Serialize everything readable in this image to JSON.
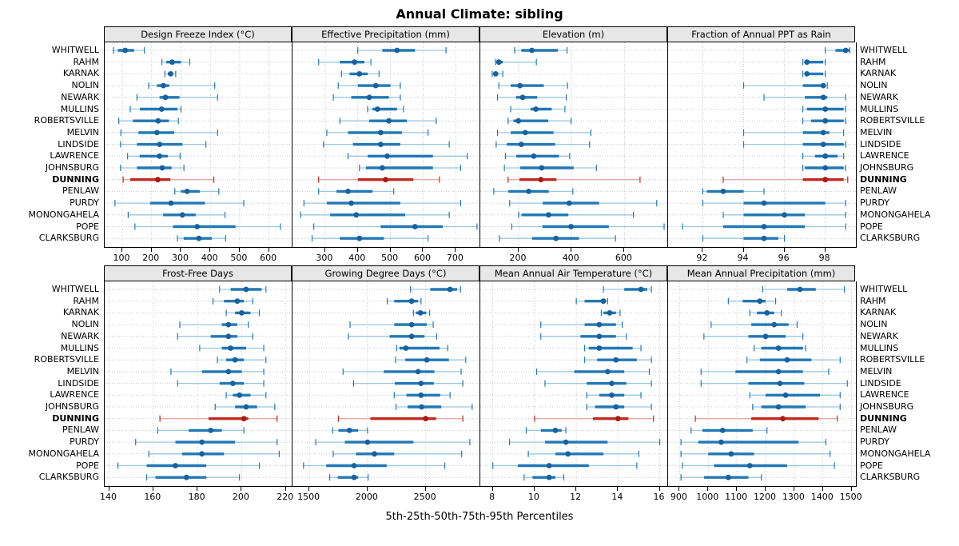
{
  "title": "Annual Climate: sibling",
  "caption": "5th-25th-50th-75th-95th Percentiles",
  "colors": {
    "blue": "#2278b5",
    "blue_light": "#9dc7e0",
    "blue_dot": "#17629e",
    "red": "#c02a21",
    "red_light": "#e8aaa4",
    "red_dot": "#a51d12",
    "grid": "#c9c9c9",
    "strip_bg": "#e7e7e7",
    "border": "#000000"
  },
  "sites": [
    {
      "name": "WHITWELL",
      "highlight": false
    },
    {
      "name": "RAHM",
      "highlight": false
    },
    {
      "name": "KARNAK",
      "highlight": false
    },
    {
      "name": "NOLIN",
      "highlight": false
    },
    {
      "name": "NEWARK",
      "highlight": false
    },
    {
      "name": "MULLINS",
      "highlight": false
    },
    {
      "name": "ROBERTSVILLE",
      "highlight": false
    },
    {
      "name": "MELVIN",
      "highlight": false
    },
    {
      "name": "LINDSIDE",
      "highlight": false
    },
    {
      "name": "LAWRENCE",
      "highlight": false
    },
    {
      "name": "JOHNSBURG",
      "highlight": false
    },
    {
      "name": "DUNNING",
      "highlight": true
    },
    {
      "name": "PENLAW",
      "highlight": false
    },
    {
      "name": "PURDY",
      "highlight": false
    },
    {
      "name": "MONONGAHELA",
      "highlight": false
    },
    {
      "name": "POPE",
      "highlight": false
    },
    {
      "name": "CLARKSBURG",
      "highlight": false
    }
  ],
  "chart_data": {
    "type": "dotplot-percentiles",
    "percentiles": [
      5,
      25,
      50,
      75,
      95
    ],
    "highlight_site": "DUNNING",
    "panel_layout": [
      2,
      4
    ],
    "panels": [
      {
        "title": "Design Freeze Index (°C)",
        "grid_row": 0,
        "xlim": [
          40,
          680
        ],
        "ticks": [
          100,
          200,
          300,
          400,
          500,
          600
        ],
        "values": [
          [
            70,
            85,
            110,
            140,
            175
          ],
          [
            235,
            250,
            270,
            300,
            330
          ],
          [
            245,
            255,
            265,
            272,
            282
          ],
          [
            190,
            218,
            240,
            260,
            415
          ],
          [
            150,
            227,
            247,
            295,
            425
          ],
          [
            127,
            160,
            234,
            288,
            300
          ],
          [
            88,
            136,
            222,
            259,
            291
          ],
          [
            95,
            155,
            218,
            277,
            425
          ],
          [
            94,
            150,
            227,
            305,
            385
          ],
          [
            118,
            159,
            227,
            255,
            297
          ],
          [
            94,
            150,
            236,
            268,
            310
          ],
          [
            103,
            127,
            221,
            264,
            412
          ],
          [
            279,
            300,
            321,
            364,
            429
          ],
          [
            75,
            195,
            266,
            382,
            514
          ],
          [
            120,
            239,
            305,
            350,
            450
          ],
          [
            143,
            273,
            355,
            486,
            639
          ],
          [
            288,
            309,
            361,
            405,
            452
          ]
        ]
      },
      {
        "title": "Effective Precipitation (mm)",
        "grid_row": 0,
        "xlim": [
          200,
          775
        ],
        "ticks": [
          300,
          400,
          500,
          600,
          700
        ],
        "values": [
          [
            400,
            475,
            520,
            575,
            670
          ],
          [
            280,
            345,
            390,
            420,
            440
          ],
          [
            350,
            375,
            405,
            430,
            465
          ],
          [
            340,
            400,
            455,
            500,
            530
          ],
          [
            325,
            380,
            435,
            495,
            530
          ],
          [
            430,
            445,
            460,
            520,
            540
          ],
          [
            345,
            435,
            495,
            550,
            640
          ],
          [
            305,
            370,
            470,
            535,
            615
          ],
          [
            295,
            385,
            470,
            530,
            680
          ],
          [
            370,
            430,
            490,
            630,
            735
          ],
          [
            405,
            425,
            475,
            630,
            715
          ],
          [
            280,
            400,
            485,
            570,
            650
          ],
          [
            280,
            335,
            370,
            445,
            510
          ],
          [
            235,
            305,
            380,
            530,
            715
          ],
          [
            225,
            315,
            395,
            545,
            680
          ],
          [
            265,
            470,
            575,
            660,
            765
          ],
          [
            260,
            345,
            405,
            480,
            615
          ]
        ]
      },
      {
        "title": "Elevation (m)",
        "grid_row": 0,
        "xlim": [
          55,
          765
        ],
        "ticks": [
          200,
          400,
          600
        ],
        "values": [
          [
            185,
            210,
            250,
            348,
            383
          ],
          [
            112,
            116,
            125,
            140,
            267
          ],
          [
            100,
            105,
            113,
            123,
            140
          ],
          [
            125,
            170,
            205,
            295,
            385
          ],
          [
            120,
            190,
            215,
            270,
            380
          ],
          [
            170,
            245,
            265,
            325,
            375
          ],
          [
            160,
            180,
            199,
            312,
            398
          ],
          [
            120,
            170,
            225,
            332,
            473
          ],
          [
            115,
            155,
            210,
            338,
            468
          ],
          [
            150,
            191,
            257,
            352,
            393
          ],
          [
            146,
            206,
            287,
            408,
            494
          ],
          [
            160,
            203,
            284,
            343,
            659
          ],
          [
            106,
            161,
            238,
            314,
            405
          ],
          [
            166,
            291,
            391,
            504,
            722
          ],
          [
            200,
            211,
            313,
            388,
            634
          ],
          [
            174,
            290,
            398,
            541,
            750
          ],
          [
            127,
            251,
            341,
            428,
            566
          ]
        ]
      },
      {
        "title": "Fraction of Annual PPT as Rain",
        "grid_row": 0,
        "xlim": [
          90.3,
          99.5
        ],
        "ticks": [
          92,
          94,
          96,
          98
        ],
        "values": [
          [
            98,
            98.5,
            99,
            99.2,
            99.2
          ],
          [
            96.9,
            97,
            97.1,
            97.9,
            98
          ],
          [
            96.9,
            97,
            97.1,
            97.9,
            98
          ],
          [
            94,
            96.9,
            97.9,
            98,
            98.1
          ],
          [
            95,
            97,
            97.9,
            98.1,
            99
          ],
          [
            96.9,
            97.1,
            98,
            98.9,
            99
          ],
          [
            96.9,
            97.3,
            98,
            98.9,
            99
          ],
          [
            94,
            96.9,
            97.9,
            98.2,
            98.9
          ],
          [
            94,
            96.9,
            97.9,
            98.9,
            99
          ],
          [
            96.9,
            97.5,
            98,
            98.6,
            98.9
          ],
          [
            96.9,
            97,
            98,
            98.9,
            99
          ],
          [
            93,
            96.9,
            98,
            98.9,
            99.1
          ],
          [
            92,
            92.2,
            93,
            94,
            95
          ],
          [
            92,
            94,
            95,
            98,
            99
          ],
          [
            93,
            94,
            96,
            97,
            99
          ],
          [
            91,
            93,
            95,
            97,
            99
          ],
          [
            92,
            94,
            95,
            95.7,
            96
          ]
        ]
      },
      {
        "title": "Frost-Free Days",
        "grid_row": 1,
        "xlim": [
          138,
          223
        ],
        "ticks": [
          140,
          160,
          180,
          200,
          220
        ],
        "values": [
          [
            190,
            195,
            202,
            209,
            211
          ],
          [
            187,
            192,
            198,
            201,
            205
          ],
          [
            193,
            197,
            200,
            204,
            208
          ],
          [
            172,
            191,
            194,
            198,
            203
          ],
          [
            171,
            186,
            194,
            198,
            205
          ],
          [
            181,
            191,
            195,
            202,
            210
          ],
          [
            189,
            193,
            197,
            201,
            211
          ],
          [
            168,
            182,
            194,
            200,
            210
          ],
          [
            171,
            190,
            196,
            201,
            210
          ],
          [
            193,
            196,
            199,
            204,
            211
          ],
          [
            188,
            197,
            202,
            207,
            215
          ],
          [
            163,
            185,
            201,
            203,
            216
          ],
          [
            162,
            176,
            186,
            191,
            201
          ],
          [
            152,
            170,
            182,
            197,
            216
          ],
          [
            158,
            173,
            182,
            192,
            217
          ],
          [
            144,
            157,
            170,
            184,
            208
          ],
          [
            157,
            161,
            175,
            184,
            199
          ]
        ]
      },
      {
        "title": "Growing Degree Days (°C)",
        "grid_row": 1,
        "xlim": [
          1355,
          2970
        ],
        "ticks": [
          1500,
          2000,
          2500
        ],
        "values": [
          [
            2370,
            2540,
            2710,
            2770,
            2800
          ],
          [
            2170,
            2230,
            2380,
            2435,
            2460
          ],
          [
            2395,
            2415,
            2455,
            2505,
            2535
          ],
          [
            1850,
            2230,
            2380,
            2510,
            2565
          ],
          [
            1835,
            2190,
            2380,
            2490,
            2595
          ],
          [
            2250,
            2275,
            2330,
            2620,
            2690
          ],
          [
            2240,
            2325,
            2510,
            2700,
            2845
          ],
          [
            1790,
            2140,
            2435,
            2575,
            2805
          ],
          [
            1880,
            2235,
            2460,
            2570,
            2820
          ],
          [
            2230,
            2335,
            2460,
            2625,
            2710
          ],
          [
            2245,
            2345,
            2465,
            2635,
            2900
          ],
          [
            1750,
            2025,
            2500,
            2590,
            2820
          ],
          [
            1700,
            1750,
            1845,
            1920,
            2000
          ],
          [
            1555,
            1805,
            2000,
            2395,
            2880
          ],
          [
            1705,
            1900,
            2060,
            2230,
            2810
          ],
          [
            1450,
            1645,
            1885,
            2165,
            2665
          ],
          [
            1675,
            1745,
            1885,
            1920,
            2005
          ]
        ]
      },
      {
        "title": "Mean Annual Air Temperature (°C)",
        "grid_row": 1,
        "xlim": [
          7.4,
          16.4
        ],
        "ticks": [
          8,
          10,
          12,
          14,
          16
        ],
        "values": [
          [
            13.3,
            14.3,
            15.1,
            15.4,
            15.6
          ],
          [
            12.0,
            12.4,
            13.3,
            13.4,
            13.5
          ],
          [
            13.2,
            13.3,
            13.6,
            13.9,
            14.1
          ],
          [
            10.3,
            12.4,
            13.1,
            13.9,
            14.2
          ],
          [
            10.3,
            12.2,
            13.1,
            13.9,
            14.4
          ],
          [
            12.4,
            12.6,
            13.1,
            14.7,
            15.1
          ],
          [
            12.4,
            13.0,
            13.9,
            14.9,
            15.6
          ],
          [
            10.1,
            11.9,
            13.5,
            14.3,
            15.5
          ],
          [
            10.5,
            12.5,
            13.7,
            14.4,
            15.6
          ],
          [
            12.5,
            13.1,
            13.7,
            14.3,
            15.1
          ],
          [
            12.5,
            12.9,
            13.9,
            14.3,
            15.6
          ],
          [
            10.0,
            12.8,
            14.0,
            14.5,
            15.7
          ],
          [
            9.6,
            10.3,
            11.0,
            11.3,
            11.5
          ],
          [
            8.8,
            10.5,
            11.5,
            13.5,
            16.0
          ],
          [
            9.7,
            11.0,
            11.6,
            13.3,
            15.0
          ],
          [
            8.0,
            9.2,
            10.7,
            12.6,
            14.9
          ],
          [
            9.5,
            9.9,
            10.7,
            11.0,
            11.4
          ]
        ]
      },
      {
        "title": "Mean Annual Precipitation (mm)",
        "grid_row": 1,
        "xlim": [
          860,
          1515
        ],
        "ticks": [
          900,
          1000,
          1100,
          1200,
          1300,
          1400,
          1500
        ],
        "values": [
          [
            1190,
            1275,
            1320,
            1375,
            1475
          ],
          [
            1070,
            1120,
            1180,
            1200,
            1235
          ],
          [
            1145,
            1170,
            1205,
            1230,
            1255
          ],
          [
            1010,
            1150,
            1230,
            1280,
            1310
          ],
          [
            985,
            1140,
            1200,
            1270,
            1330
          ],
          [
            1160,
            1185,
            1245,
            1330,
            1340
          ],
          [
            1135,
            1180,
            1275,
            1360,
            1460
          ],
          [
            975,
            1095,
            1245,
            1330,
            1420
          ],
          [
            975,
            1140,
            1250,
            1335,
            1485
          ],
          [
            1145,
            1200,
            1270,
            1390,
            1460
          ],
          [
            1155,
            1185,
            1245,
            1340,
            1460
          ],
          [
            955,
            1150,
            1260,
            1385,
            1450
          ],
          [
            940,
            980,
            1050,
            1155,
            1205
          ],
          [
            905,
            965,
            1045,
            1315,
            1410
          ],
          [
            905,
            1000,
            1080,
            1160,
            1425
          ],
          [
            910,
            1020,
            1145,
            1275,
            1440
          ],
          [
            905,
            985,
            1070,
            1140,
            1185
          ]
        ]
      }
    ]
  }
}
